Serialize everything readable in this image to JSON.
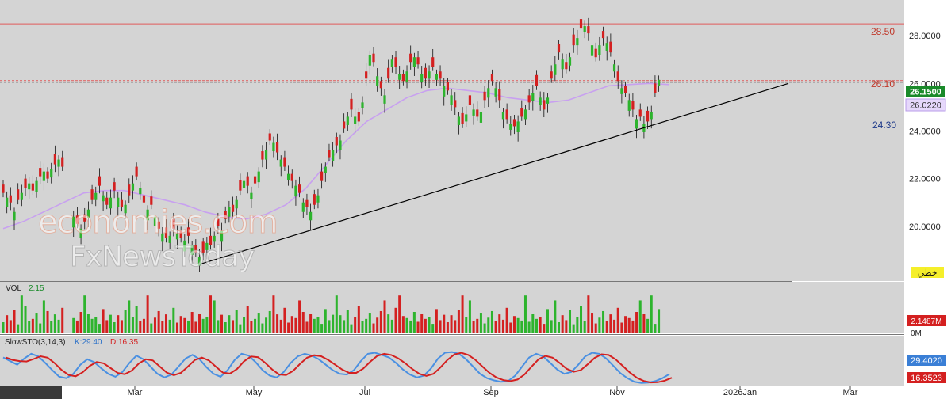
{
  "colors": {
    "background": "#d4d4d4",
    "axis_panel": "#ffffff",
    "up": "#2db42d",
    "down": "#d42020",
    "ma": "#c8a0f0",
    "resistance": "#e05a5a",
    "support": "#1e3a8a",
    "trendline": "#000000",
    "sto_k": "#4a90e2",
    "sto_d": "#d42020"
  },
  "chart_data": [
    {
      "type": "candlestick",
      "ylim": [
        17.7,
        29.5
      ],
      "grid": false,
      "y_ticks": [
        "28.0000",
        "26.0000",
        "24.0000",
        "22.0000",
        "20.0000"
      ],
      "x_ticks": [
        "Mar",
        "May",
        "Jul",
        "Sep",
        "Nov",
        "2026Jan",
        "Mar"
      ],
      "close_series": [
        21.4,
        21.2,
        21.0,
        20.6,
        21.1,
        21.4,
        21.6,
        21.8,
        21.5,
        21.9,
        22.1,
        22.3,
        22.0,
        22.4,
        22.6,
        22.8,
        22.5,
        null,
        null,
        20.4,
        20.1,
        19.9,
        20.2,
        20.7,
        21.1,
        21.4,
        21.7,
        21.3,
        20.9,
        21.2,
        21.5,
        21.2,
        20.8,
        20.9,
        21.3,
        21.8,
        22.1,
        21.6,
        21.0,
        20.7,
        20.9,
        20.4,
        19.9,
        19.7,
        19.5,
        19.6,
        19.9,
        19.7,
        19.5,
        19.4,
        19.6,
        19.2,
        18.9,
        18.7,
        18.9,
        19.3,
        19.2,
        19.6,
        20.0,
        19.8,
        20.3,
        20.8,
        20.6,
        21.1,
        21.5,
        21.9,
        21.7,
        21.4,
        21.8,
        22.3,
        22.8,
        23.2,
        23.6,
        23.5,
        23.1,
        22.8,
        22.5,
        22.2,
        21.9,
        21.7,
        21.4,
        21.0,
        20.8,
        20.6,
        20.9,
        21.3,
        21.9,
        22.5,
        22.9,
        23.2,
        23.4,
        23.6,
        24.1,
        24.6,
        24.9,
        24.6,
        24.4,
        25.2,
        26.2,
        27.2,
        26.9,
        26.3,
        25.8,
        25.5,
        26.2,
        27.0,
        26.7,
        26.4,
        26.1,
        26.5,
        26.9,
        27.1,
        26.8,
        26.4,
        26.2,
        26.5,
        26.7,
        26.4,
        26.2,
        25.9,
        25.7,
        25.5,
        25.0,
        24.6,
        24.3,
        24.7,
        25.1,
        24.9,
        24.6,
        24.8,
        25.3,
        25.8,
        26.1,
        25.8,
        25.3,
        24.8,
        24.5,
        24.3,
        24.2,
        24.4,
        24.6,
        24.9,
        25.2,
        25.6,
        25.9,
        25.4,
        24.9,
        25.4,
        26.2,
        26.8,
        27.3,
        27.0,
        26.6,
        27.1,
        27.6,
        27.9,
        28.3,
        28.4,
        28.1,
        27.6,
        27.1,
        27.6,
        27.9,
        27.7,
        27.3,
        26.8,
        26.1,
        25.8,
        25.6,
        25.3,
        24.9,
        24.5,
        24.6,
        24.3,
        24.4,
        24.8,
        25.6,
        26.15
      ],
      "candle_open_offset": [
        0.35,
        -0.4,
        0.3,
        -0.35,
        0.45,
        -0.3,
        0.4,
        -0.25,
        0.3,
        -0.45
      ],
      "moving_average": [
        19.9,
        20.2,
        20.6,
        21.0,
        21.4,
        21.5,
        21.5,
        21.3,
        21.1,
        20.9,
        20.6,
        20.4,
        20.3,
        20.5,
        20.9,
        21.6,
        22.6,
        23.6,
        24.4,
        24.9,
        25.4,
        25.7,
        25.8,
        25.7,
        25.6,
        25.4,
        25.3,
        25.2,
        25.3,
        25.6,
        25.9,
        25.95,
        26.0,
        25.95
      ],
      "hlines": [
        {
          "label": "28.50",
          "value": 28.5,
          "style": "solid"
        },
        {
          "label": "26.10",
          "value": 26.1,
          "style": "dashed"
        },
        {
          "label": "24.30",
          "value": 24.3,
          "style": "solid"
        }
      ],
      "trendline": {
        "from_index": 53,
        "from_value": 18.4,
        "to_index": 212,
        "to_value": 26.0
      },
      "last_price": "26.1500",
      "ma_value": "26.0220",
      "tag": "خطي"
    },
    {
      "type": "bar",
      "label": "VOL",
      "value_label": "2.15",
      "y_ticks": [
        "2.1487M",
        "0M"
      ],
      "volume_pattern": [
        0.25,
        0.42,
        0.3,
        0.55,
        0.2,
        0.38,
        0.65,
        0.28,
        0.33,
        0.48,
        0.22,
        0.36,
        0.52,
        0.27,
        0.44,
        0.31,
        0.6,
        0.24,
        0.4,
        0.35,
        0.29,
        0.5,
        0.26,
        0.46,
        0.33,
        0.38,
        0.21,
        0.57,
        0.3,
        0.43
      ]
    },
    {
      "type": "line",
      "label": "SlowSTO(3,14,3)",
      "k_label": "K:29.40",
      "d_label": "D:16.35",
      "ylim": [
        0,
        100
      ],
      "k_value": "29.4020",
      "d_value": "16.3523",
      "k": [
        75,
        65,
        55,
        72,
        85,
        78,
        60,
        40,
        22,
        18,
        30,
        55,
        70,
        62,
        45,
        30,
        22,
        35,
        60,
        80,
        70,
        50,
        30,
        20,
        28,
        50,
        72,
        82,
        70,
        48,
        30,
        22,
        40,
        68,
        85,
        80,
        62,
        40,
        25,
        20,
        35,
        60,
        78,
        85,
        80,
        70,
        55,
        40,
        30,
        28,
        40,
        65,
        85,
        88,
        82,
        75,
        60,
        42,
        28,
        20,
        25,
        45,
        72,
        88,
        90,
        85,
        70,
        50,
        30,
        18,
        12,
        8,
        10,
        25,
        50,
        75,
        85,
        78,
        60,
        42,
        30,
        35,
        55,
        78,
        88,
        85,
        72,
        52,
        32,
        18,
        8,
        5,
        6,
        10,
        18,
        29.4
      ]
    }
  ]
}
